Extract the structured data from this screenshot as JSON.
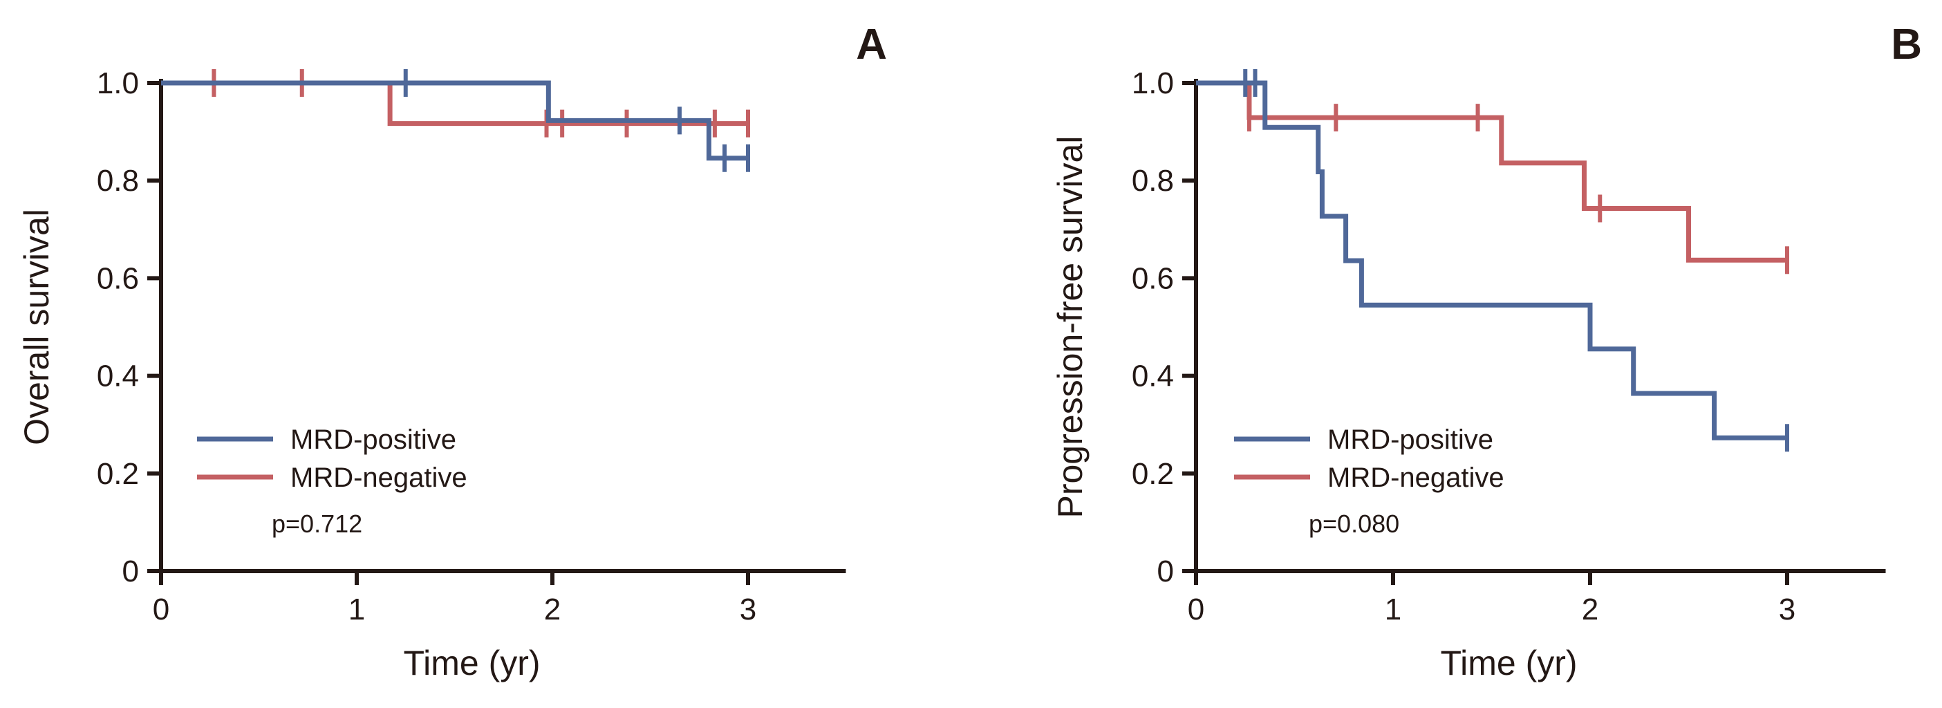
{
  "colors": {
    "positive": "#4f6899",
    "negative": "#c46063",
    "axis": "#231815"
  },
  "chart_data": [
    {
      "type": "line",
      "step": true,
      "panel_label": "A",
      "xlabel": "Time (yr)",
      "ylabel": "Overall survival",
      "xlim": [
        0,
        3.5
      ],
      "ylim": [
        0,
        1.0
      ],
      "xticks": [
        "0",
        "1",
        "2",
        "3"
      ],
      "yticks": [
        "0",
        "0.2",
        "0.4",
        "0.6",
        "0.8",
        "1.0"
      ],
      "legend": {
        "placement": "bottom-left",
        "p_value": "p=0.712"
      },
      "series": [
        {
          "name": "MRD-positive",
          "color_key": "positive",
          "steps": [
            [
              0,
              1.0
            ],
            [
              1.98,
              0.923
            ],
            [
              2.8,
              0.846
            ],
            [
              3.0,
              0.846
            ]
          ],
          "censored": [
            1.25,
            2.65,
            2.88,
            3.0
          ]
        },
        {
          "name": "MRD-negative",
          "color_key": "negative",
          "steps": [
            [
              0,
              1.0
            ],
            [
              1.17,
              0.917
            ],
            [
              3.0,
              0.917
            ]
          ],
          "censored": [
            0.27,
            0.72,
            1.97,
            2.05,
            2.38,
            2.83,
            3.0
          ]
        }
      ]
    },
    {
      "type": "line",
      "step": true,
      "panel_label": "B",
      "xlabel": "Time (yr)",
      "ylabel": "Progression-free survival",
      "xlim": [
        0,
        3.5
      ],
      "ylim": [
        0,
        1.0
      ],
      "xticks": [
        "0",
        "1",
        "2",
        "3"
      ],
      "yticks": [
        "0",
        "0.2",
        "0.4",
        "0.6",
        "0.8",
        "1.0"
      ],
      "legend": {
        "placement": "bottom-left",
        "p_value": "p=0.080"
      },
      "series": [
        {
          "name": "MRD-positive",
          "color_key": "positive",
          "steps": [
            [
              0,
              1.0
            ],
            [
              0.35,
              0.909
            ],
            [
              0.62,
              0.818
            ],
            [
              0.64,
              0.727
            ],
            [
              0.76,
              0.636
            ],
            [
              0.84,
              0.545
            ],
            [
              2.0,
              0.455
            ],
            [
              2.22,
              0.364
            ],
            [
              2.63,
              0.273
            ],
            [
              3.0,
              0.273
            ]
          ],
          "censored": [
            0.25,
            0.3,
            3.0
          ]
        },
        {
          "name": "MRD-negative",
          "color_key": "negative",
          "steps": [
            [
              0,
              1.0
            ],
            [
              0.27,
              0.929
            ],
            [
              1.55,
              0.836
            ],
            [
              1.97,
              0.743
            ],
            [
              2.5,
              0.637
            ],
            [
              3.0,
              0.637
            ]
          ],
          "censored": [
            0.27,
            0.71,
            1.43,
            2.05,
            3.0
          ]
        }
      ]
    }
  ]
}
